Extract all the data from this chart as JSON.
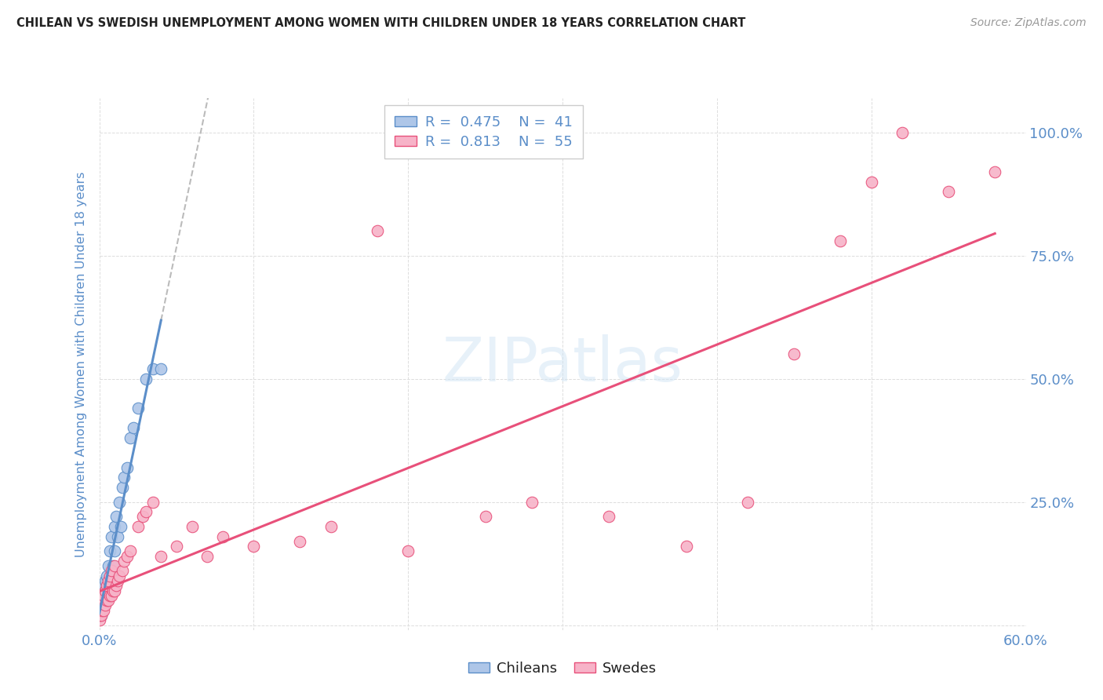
{
  "title": "CHILEAN VS SWEDISH UNEMPLOYMENT AMONG WOMEN WITH CHILDREN UNDER 18 YEARS CORRELATION CHART",
  "source": "Source: ZipAtlas.com",
  "ylabel": "Unemployment Among Women with Children Under 18 years",
  "xlim": [
    0.0,
    0.6
  ],
  "ylim": [
    -0.01,
    1.07
  ],
  "ytick_values": [
    0.0,
    0.25,
    0.5,
    0.75,
    1.0
  ],
  "xtick_values": [
    0.0,
    0.1,
    0.2,
    0.3,
    0.4,
    0.5,
    0.6
  ],
  "xtick_labels": [
    "0.0%",
    "",
    "",
    "",
    "",
    "",
    "60.0%"
  ],
  "right_ytick_labels": [
    "100.0%",
    "75.0%",
    "50.0%",
    "25.0%"
  ],
  "right_ytick_values": [
    1.0,
    0.75,
    0.5,
    0.25
  ],
  "legend_r1": "0.475",
  "legend_n1": "41",
  "legend_r2": "0.813",
  "legend_n2": "55",
  "chilean_fill": "#aec6e8",
  "chilean_edge": "#5b8ec9",
  "swedish_fill": "#f7b3c8",
  "swedish_edge": "#e8507a",
  "chilean_line_color": "#5b8ec9",
  "swedish_line_color": "#e8507a",
  "dashed_line_color": "#aaaaaa",
  "title_color": "#222222",
  "axis_color": "#5b8ec9",
  "watermark_color": "#d0e4f5",
  "background_color": "#ffffff",
  "chileans_x": [
    0.0,
    0.0,
    0.0,
    0.0,
    0.001,
    0.001,
    0.001,
    0.001,
    0.002,
    0.002,
    0.002,
    0.003,
    0.003,
    0.003,
    0.004,
    0.004,
    0.004,
    0.005,
    0.005,
    0.006,
    0.006,
    0.007,
    0.007,
    0.008,
    0.008,
    0.009,
    0.01,
    0.01,
    0.011,
    0.012,
    0.013,
    0.014,
    0.015,
    0.016,
    0.018,
    0.02,
    0.022,
    0.025,
    0.03,
    0.035,
    0.04
  ],
  "chileans_y": [
    0.02,
    0.03,
    0.04,
    0.05,
    0.02,
    0.03,
    0.04,
    0.06,
    0.03,
    0.05,
    0.07,
    0.04,
    0.06,
    0.08,
    0.05,
    0.07,
    0.09,
    0.06,
    0.1,
    0.07,
    0.12,
    0.08,
    0.15,
    0.1,
    0.18,
    0.12,
    0.15,
    0.2,
    0.22,
    0.18,
    0.25,
    0.2,
    0.28,
    0.3,
    0.32,
    0.38,
    0.4,
    0.44,
    0.5,
    0.52,
    0.52
  ],
  "swedes_x": [
    0.0,
    0.0,
    0.0,
    0.0,
    0.001,
    0.001,
    0.002,
    0.002,
    0.003,
    0.003,
    0.004,
    0.004,
    0.005,
    0.005,
    0.006,
    0.006,
    0.007,
    0.007,
    0.008,
    0.008,
    0.009,
    0.01,
    0.01,
    0.011,
    0.012,
    0.013,
    0.015,
    0.016,
    0.018,
    0.02,
    0.025,
    0.028,
    0.03,
    0.035,
    0.04,
    0.05,
    0.06,
    0.07,
    0.08,
    0.1,
    0.13,
    0.15,
    0.18,
    0.2,
    0.25,
    0.28,
    0.33,
    0.38,
    0.42,
    0.45,
    0.48,
    0.5,
    0.52,
    0.55,
    0.58
  ],
  "swedes_y": [
    0.01,
    0.02,
    0.03,
    0.04,
    0.02,
    0.04,
    0.03,
    0.05,
    0.03,
    0.06,
    0.04,
    0.07,
    0.05,
    0.08,
    0.05,
    0.09,
    0.06,
    0.1,
    0.06,
    0.11,
    0.07,
    0.07,
    0.12,
    0.08,
    0.09,
    0.1,
    0.11,
    0.13,
    0.14,
    0.15,
    0.2,
    0.22,
    0.23,
    0.25,
    0.14,
    0.16,
    0.2,
    0.14,
    0.18,
    0.16,
    0.17,
    0.2,
    0.8,
    0.15,
    0.22,
    0.25,
    0.22,
    0.16,
    0.25,
    0.55,
    0.78,
    0.9,
    1.0,
    0.88,
    0.92
  ]
}
